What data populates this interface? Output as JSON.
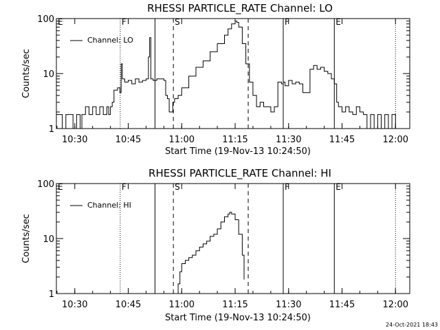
{
  "footer_date": "24-Oct-2021 18:43",
  "chart_data": [
    {
      "type": "line",
      "title": "RHESSI PARTICLE_RATE Channel: LO",
      "xlabel": "Start Time (19-Nov-13 10:24:50)",
      "ylabel": "Counts/sec",
      "y_scale": "log",
      "ylim": [
        1,
        100
      ],
      "xlim": [
        "10:24:50",
        "12:04:00"
      ],
      "x_ticks": [
        "10:30",
        "10:45",
        "11:00",
        "11:15",
        "11:30",
        "11:45",
        "12:00"
      ],
      "y_ticks": [
        "1",
        "10",
        "100"
      ],
      "legend": {
        "label": "Channel: LO",
        "placement": "top-left"
      },
      "markers": [
        {
          "label": "E",
          "time": "10:24:50",
          "style": "solid"
        },
        {
          "label": "F",
          "time": "10:42:45",
          "style": "dotted"
        },
        {
          "label": "",
          "time": "10:52:30",
          "style": "solid"
        },
        {
          "label": "S",
          "time": "10:57:40",
          "style": "dashed"
        },
        {
          "label": "",
          "time": "11:18:40",
          "style": "dashed"
        },
        {
          "label": "F",
          "time": "11:28:30",
          "style": "solid"
        },
        {
          "label": "E",
          "time": "11:42:50",
          "style": "solid"
        },
        {
          "label": "",
          "time": "12:00:00",
          "style": "dotted"
        }
      ],
      "series": [
        {
          "name": "Channel: LO",
          "x": [
            "10:24:50",
            "10:26:00",
            "10:26:30",
            "10:27:30",
            "10:28:30",
            "10:29:30",
            "10:30:30",
            "10:31:00",
            "10:31:30",
            "10:32:00",
            "10:32:30",
            "10:33:00",
            "10:34:00",
            "10:35:00",
            "10:36:00",
            "10:37:00",
            "10:38:00",
            "10:38:30",
            "10:39:00",
            "10:39:30",
            "10:40:00",
            "10:40:30",
            "10:41:00",
            "10:42:00",
            "10:42:40",
            "10:43:00",
            "10:43:20",
            "10:44:00",
            "10:45:00",
            "10:46:00",
            "10:47:00",
            "10:48:00",
            "10:49:00",
            "10:50:00",
            "10:50:40",
            "10:51:00",
            "10:51:20",
            "10:52:00",
            "10:53:00",
            "10:54:00",
            "10:55:00",
            "10:55:30",
            "10:56:00",
            "10:56:30",
            "10:57:00",
            "10:57:30",
            "10:58:00",
            "10:59:00",
            "11:00:00",
            "11:02:00",
            "11:04:00",
            "11:06:00",
            "11:08:00",
            "11:10:00",
            "11:12:00",
            "11:13:00",
            "11:14:00",
            "11:15:00",
            "11:15:30",
            "11:16:00",
            "11:17:00",
            "11:18:00",
            "11:19:00",
            "11:20:00",
            "11:21:00",
            "11:22:00",
            "11:23:00",
            "11:24:00",
            "11:25:00",
            "11:26:00",
            "11:27:00",
            "11:28:00",
            "11:28:30",
            "11:29:00",
            "11:30:00",
            "11:31:00",
            "11:32:00",
            "11:33:00",
            "11:34:00",
            "11:35:00",
            "11:36:00",
            "11:37:00",
            "11:38:00",
            "11:39:00",
            "11:40:00",
            "11:41:00",
            "11:42:00",
            "11:42:50",
            "11:43:30",
            "11:44:00",
            "11:45:00",
            "11:46:00",
            "11:47:00",
            "11:48:00",
            "11:49:00",
            "11:50:00",
            "11:51:00",
            "11:52:00",
            "11:53:00",
            "11:54:00",
            "11:55:00",
            "11:56:00",
            "11:57:00",
            "11:58:00",
            "11:59:00",
            "12:00:00",
            "12:01:00"
          ],
          "y": [
            1.8,
            1.8,
            1.0,
            1.8,
            1.8,
            1.0,
            1.8,
            1.8,
            1.0,
            1.8,
            1.8,
            2.5,
            1.8,
            2.5,
            1.8,
            2.5,
            1.8,
            1.8,
            2.5,
            1.8,
            2.5,
            3.0,
            5.0,
            5.5,
            4.5,
            15.0,
            8.0,
            7.0,
            7.5,
            6.5,
            8.0,
            7.0,
            7.5,
            8.0,
            20.0,
            45.0,
            8.0,
            7.5,
            8.0,
            8.0,
            7.5,
            4.0,
            3.5,
            2.0,
            2.0,
            3.0,
            3.5,
            4.0,
            5.5,
            9.0,
            13.0,
            17.0,
            25.0,
            35.0,
            50.0,
            65.0,
            80.0,
            90.0,
            85.0,
            70.0,
            35.0,
            15.0,
            7.0,
            4.0,
            2.5,
            3.0,
            2.5,
            2.5,
            2.0,
            2.5,
            7.0,
            6.5,
            7.0,
            6.0,
            7.5,
            6.5,
            7.0,
            6.5,
            4.5,
            4.5,
            12.0,
            14.0,
            12.0,
            13.0,
            11.0,
            10.0,
            8.0,
            6.5,
            3.0,
            2.5,
            2.0,
            2.5,
            2.0,
            1.8,
            2.5,
            2.0,
            1.8,
            1.0,
            1.8,
            1.0,
            1.8,
            1.0,
            1.8,
            1.0,
            1.8,
            1.0,
            1.0
          ]
        }
      ]
    },
    {
      "type": "line",
      "title": "RHESSI PARTICLE_RATE Channel: HI",
      "xlabel": "Start Time (19-Nov-13 10:24:50)",
      "ylabel": "Counts/sec",
      "y_scale": "log",
      "ylim": [
        1,
        100
      ],
      "xlim": [
        "10:24:50",
        "12:04:00"
      ],
      "x_ticks": [
        "10:30",
        "10:45",
        "11:00",
        "11:15",
        "11:30",
        "11:45",
        "12:00"
      ],
      "y_ticks": [
        "1",
        "10",
        "100"
      ],
      "legend": {
        "label": "Channel: HI",
        "placement": "top-left"
      },
      "markers": [
        {
          "label": "E",
          "time": "10:24:50",
          "style": "solid"
        },
        {
          "label": "F",
          "time": "10:42:45",
          "style": "dotted"
        },
        {
          "label": "",
          "time": "10:52:30",
          "style": "solid"
        },
        {
          "label": "S",
          "time": "10:57:40",
          "style": "dashed"
        },
        {
          "label": "",
          "time": "11:18:40",
          "style": "dashed"
        },
        {
          "label": "F",
          "time": "11:28:30",
          "style": "solid"
        },
        {
          "label": "E",
          "time": "11:42:50",
          "style": "solid"
        },
        {
          "label": "",
          "time": "12:00:00",
          "style": "dotted"
        }
      ],
      "series": [
        {
          "name": "Channel: HI",
          "x": [
            "10:58:20",
            "10:59:00",
            "10:59:30",
            "11:00:00",
            "11:01:00",
            "11:02:00",
            "11:03:00",
            "11:04:00",
            "11:05:00",
            "11:06:00",
            "11:07:00",
            "11:08:00",
            "11:09:00",
            "11:10:00",
            "11:11:00",
            "11:12:00",
            "11:13:00",
            "11:13:30",
            "11:14:00",
            "11:15:00",
            "11:16:00",
            "11:17:00",
            "11:17:30"
          ],
          "y": [
            0.9,
            1.5,
            2.5,
            3.5,
            4.0,
            4.5,
            5.0,
            6.0,
            7.0,
            8.0,
            9.0,
            11.0,
            12.0,
            15.0,
            20.0,
            25.0,
            28.0,
            30.0,
            28.0,
            22.0,
            12.0,
            5.0,
            1.8
          ]
        }
      ]
    }
  ]
}
